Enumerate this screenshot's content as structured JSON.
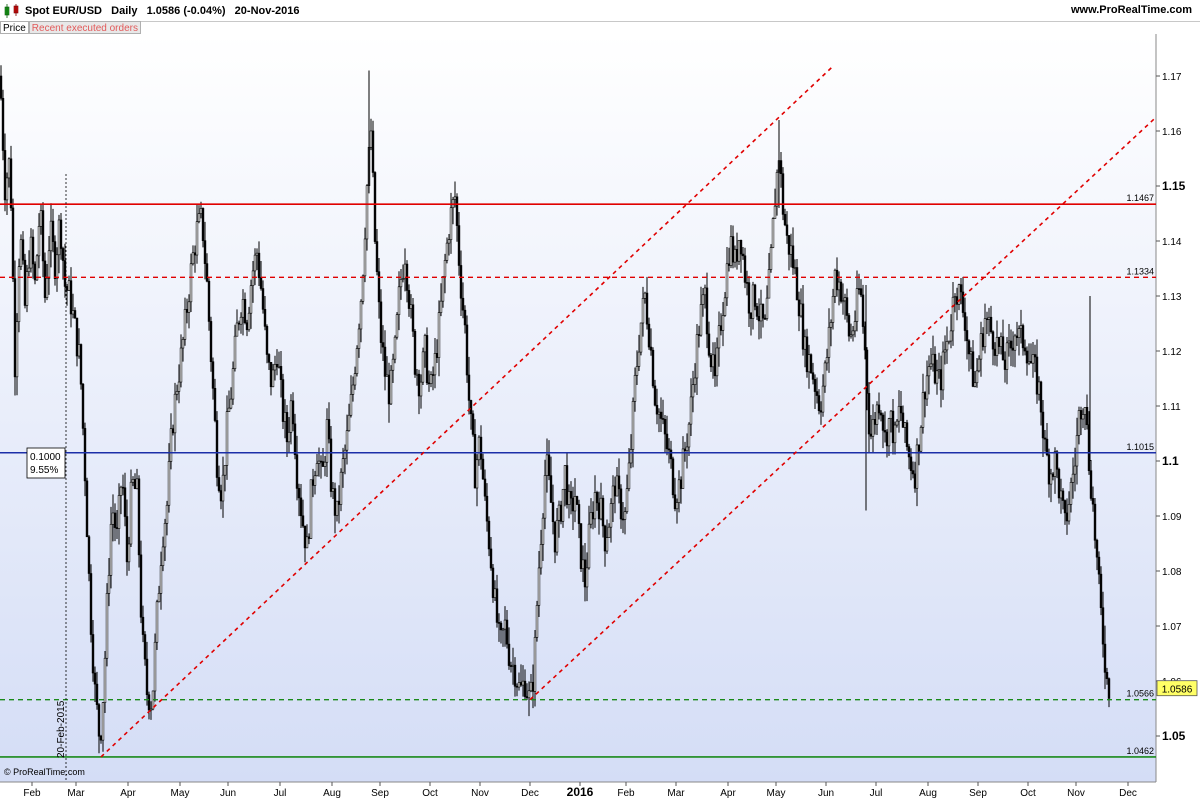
{
  "header": {
    "title": "Spot EUR/USD   Daily   1.0586 (-0.04%)   20-Nov-2016",
    "site": "www.ProRealTime.com",
    "tabs": [
      {
        "label": "Price",
        "active": true
      },
      {
        "label": "Recent executed orders",
        "active": false
      }
    ]
  },
  "footer": {
    "copyright": "© ProRealTime.com"
  },
  "chart_data": {
    "type": "candlestick",
    "symbol": "Spot EUR/USD",
    "timeframe": "Daily",
    "last_price": 1.0586,
    "change_pct": "-0.04%",
    "date": "20-Nov-2016",
    "ylim": [
      1.043,
      1.175
    ],
    "y_ticks": [
      "1.05",
      "1.06",
      "1.07",
      "1.08",
      "1.09",
      "1.1",
      "1.11",
      "1.12",
      "1.13",
      "1.14",
      "1.15",
      "1.16",
      "1.17"
    ],
    "x_ticks": [
      "Feb",
      "Mar",
      "Apr",
      "May",
      "Jun",
      "Jul",
      "Aug",
      "Sep",
      "Oct",
      "Nov",
      "Dec",
      "2016",
      "Feb",
      "Mar",
      "Apr",
      "May",
      "Jun",
      "Jul",
      "Aug",
      "Sep",
      "Oct",
      "Nov",
      "Dec"
    ],
    "horizontal_levels": [
      {
        "value": 1.1467,
        "label": "1.1467",
        "color": "#e00000",
        "style": "solid"
      },
      {
        "value": 1.1334,
        "label": "1.1334",
        "color": "#e00000",
        "style": "dashed"
      },
      {
        "value": 1.1015,
        "label": "1.1015",
        "color": "#1c2fa8",
        "style": "solid"
      },
      {
        "value": 1.0566,
        "label": "1.0566",
        "color": "#1a8a1a",
        "style": "dashed"
      },
      {
        "value": 1.0462,
        "label": "1.0462",
        "color": "#1a8a1a",
        "style": "solid"
      }
    ],
    "trend_lines": [
      {
        "from": [
          "Mar-2015",
          1.0462
        ],
        "to": [
          "May-2016",
          1.171
        ],
        "color": "#e00000",
        "style": "dotted"
      },
      {
        "from": [
          "Dec-2015",
          1.0566
        ],
        "to": [
          "Dec-2016",
          1.163
        ],
        "color": "#e00000",
        "style": "dotted"
      }
    ],
    "annotations": [
      {
        "text": "0.1000",
        "sub": "9.55%"
      },
      {
        "text": "20-Feb-2015"
      }
    ],
    "price_tag": "1.0586",
    "path": [
      [
        0,
        1.17
      ],
      [
        5,
        1.15
      ],
      [
        10,
        1.155
      ],
      [
        15,
        1.118
      ],
      [
        20,
        1.142
      ],
      [
        25,
        1.128
      ],
      [
        30,
        1.14
      ],
      [
        35,
        1.132
      ],
      [
        40,
        1.146
      ],
      [
        45,
        1.13
      ],
      [
        50,
        1.142
      ],
      [
        55,
        1.136
      ],
      [
        60,
        1.144
      ],
      [
        65,
        1.132
      ],
      [
        70,
        1.13
      ],
      [
        75,
        1.124
      ],
      [
        80,
        1.118
      ],
      [
        85,
        1.098
      ],
      [
        90,
        1.074
      ],
      [
        95,
        1.058
      ],
      [
        100,
        1.049
      ],
      [
        104,
        1.06
      ],
      [
        108,
        1.078
      ],
      [
        112,
        1.092
      ],
      [
        117,
        1.086
      ],
      [
        122,
        1.098
      ],
      [
        127,
        1.082
      ],
      [
        132,
        1.096
      ],
      [
        137,
        1.094
      ],
      [
        142,
        1.068
      ],
      [
        147,
        1.058
      ],
      [
        152,
        1.056
      ],
      [
        157,
        1.072
      ],
      [
        162,
        1.086
      ],
      [
        167,
        1.092
      ],
      [
        172,
        1.106
      ],
      [
        177,
        1.114
      ],
      [
        182,
        1.12
      ],
      [
        187,
        1.128
      ],
      [
        192,
        1.136
      ],
      [
        197,
        1.142
      ],
      [
        202,
        1.144
      ],
      [
        207,
        1.132
      ],
      [
        212,
        1.116
      ],
      [
        217,
        1.1
      ],
      [
        222,
        1.094
      ],
      [
        227,
        1.106
      ],
      [
        232,
        1.114
      ],
      [
        237,
        1.124
      ],
      [
        242,
        1.13
      ],
      [
        247,
        1.126
      ],
      [
        252,
        1.134
      ],
      [
        257,
        1.138
      ],
      [
        262,
        1.13
      ],
      [
        267,
        1.118
      ],
      [
        272,
        1.114
      ],
      [
        277,
        1.12
      ],
      [
        282,
        1.11
      ],
      [
        287,
        1.104
      ],
      [
        292,
        1.112
      ],
      [
        297,
        1.098
      ],
      [
        302,
        1.09
      ],
      [
        307,
        1.084
      ],
      [
        312,
        1.096
      ],
      [
        317,
        1.102
      ],
      [
        322,
        1.096
      ],
      [
        327,
        1.106
      ],
      [
        332,
        1.094
      ],
      [
        337,
        1.09
      ],
      [
        342,
        1.098
      ],
      [
        347,
        1.104
      ],
      [
        352,
        1.112
      ],
      [
        357,
        1.122
      ],
      [
        362,
        1.132
      ],
      [
        367,
        1.15
      ],
      [
        371,
        1.16
      ],
      [
        375,
        1.14
      ],
      [
        380,
        1.124
      ],
      [
        385,
        1.116
      ],
      [
        390,
        1.112
      ],
      [
        395,
        1.12
      ],
      [
        400,
        1.132
      ],
      [
        405,
        1.138
      ],
      [
        410,
        1.128
      ],
      [
        415,
        1.118
      ],
      [
        420,
        1.114
      ],
      [
        425,
        1.12
      ],
      [
        430,
        1.112
      ],
      [
        435,
        1.118
      ],
      [
        440,
        1.126
      ],
      [
        445,
        1.136
      ],
      [
        450,
        1.144
      ],
      [
        455,
        1.148
      ],
      [
        460,
        1.134
      ],
      [
        465,
        1.124
      ],
      [
        470,
        1.108
      ],
      [
        475,
        1.098
      ],
      [
        480,
        1.104
      ],
      [
        485,
        1.092
      ],
      [
        490,
        1.084
      ],
      [
        495,
        1.074
      ],
      [
        500,
        1.066
      ],
      [
        505,
        1.07
      ],
      [
        510,
        1.064
      ],
      [
        515,
        1.062
      ],
      [
        520,
        1.058
      ],
      [
        525,
        1.06
      ],
      [
        530,
        1.056
      ],
      [
        534,
        1.062
      ],
      [
        538,
        1.078
      ],
      [
        542,
        1.09
      ],
      [
        546,
        1.1
      ],
      [
        550,
        1.094
      ],
      [
        555,
        1.086
      ],
      [
        560,
        1.09
      ],
      [
        565,
        1.098
      ],
      [
        570,
        1.09
      ],
      [
        575,
        1.094
      ],
      [
        580,
        1.084
      ],
      [
        585,
        1.078
      ],
      [
        590,
        1.088
      ],
      [
        595,
        1.094
      ],
      [
        600,
        1.092
      ],
      [
        605,
        1.086
      ],
      [
        610,
        1.09
      ],
      [
        615,
        1.096
      ],
      [
        620,
        1.092
      ],
      [
        625,
        1.09
      ],
      [
        630,
        1.1
      ],
      [
        635,
        1.114
      ],
      [
        640,
        1.124
      ],
      [
        645,
        1.13
      ],
      [
        650,
        1.122
      ],
      [
        655,
        1.112
      ],
      [
        660,
        1.108
      ],
      [
        665,
        1.104
      ],
      [
        670,
        1.1
      ],
      [
        675,
        1.094
      ],
      [
        680,
        1.096
      ],
      [
        685,
        1.102
      ],
      [
        690,
        1.108
      ],
      [
        695,
        1.118
      ],
      [
        700,
        1.126
      ],
      [
        705,
        1.13
      ],
      [
        710,
        1.12
      ],
      [
        715,
        1.114
      ],
      [
        720,
        1.124
      ],
      [
        725,
        1.132
      ],
      [
        730,
        1.14
      ],
      [
        735,
        1.136
      ],
      [
        740,
        1.142
      ],
      [
        745,
        1.134
      ],
      [
        750,
        1.128
      ],
      [
        755,
        1.13
      ],
      [
        760,
        1.126
      ],
      [
        765,
        1.124
      ],
      [
        770,
        1.134
      ],
      [
        775,
        1.148
      ],
      [
        779,
        1.156
      ],
      [
        783,
        1.146
      ],
      [
        787,
        1.14
      ],
      [
        791,
        1.138
      ],
      [
        795,
        1.134
      ],
      [
        800,
        1.128
      ],
      [
        805,
        1.12
      ],
      [
        810,
        1.118
      ],
      [
        815,
        1.114
      ],
      [
        820,
        1.11
      ],
      [
        825,
        1.116
      ],
      [
        830,
        1.124
      ],
      [
        835,
        1.134
      ],
      [
        840,
        1.132
      ],
      [
        845,
        1.128
      ],
      [
        850,
        1.122
      ],
      [
        855,
        1.126
      ],
      [
        860,
        1.132
      ],
      [
        865,
        1.12
      ],
      [
        870,
        1.104
      ],
      [
        875,
        1.108
      ],
      [
        880,
        1.112
      ],
      [
        885,
        1.104
      ],
      [
        890,
        1.108
      ],
      [
        895,
        1.104
      ],
      [
        900,
        1.11
      ],
      [
        905,
        1.104
      ],
      [
        910,
        1.1
      ],
      [
        915,
        1.098
      ],
      [
        920,
        1.106
      ],
      [
        925,
        1.114
      ],
      [
        930,
        1.118
      ],
      [
        935,
        1.116
      ],
      [
        940,
        1.114
      ],
      [
        945,
        1.12
      ],
      [
        950,
        1.124
      ],
      [
        955,
        1.132
      ],
      [
        960,
        1.13
      ],
      [
        965,
        1.126
      ],
      [
        970,
        1.118
      ],
      [
        975,
        1.114
      ],
      [
        980,
        1.12
      ],
      [
        985,
        1.126
      ],
      [
        990,
        1.124
      ],
      [
        995,
        1.122
      ],
      [
        1000,
        1.12
      ],
      [
        1005,
        1.118
      ],
      [
        1010,
        1.12
      ],
      [
        1015,
        1.124
      ],
      [
        1020,
        1.122
      ],
      [
        1025,
        1.122
      ],
      [
        1030,
        1.118
      ],
      [
        1035,
        1.116
      ],
      [
        1040,
        1.112
      ],
      [
        1045,
        1.102
      ],
      [
        1050,
        1.098
      ],
      [
        1055,
        1.1
      ],
      [
        1060,
        1.094
      ],
      [
        1065,
        1.088
      ],
      [
        1070,
        1.094
      ],
      [
        1075,
        1.1
      ],
      [
        1080,
        1.11
      ],
      [
        1085,
        1.112
      ],
      [
        1088,
        1.102
      ],
      [
        1092,
        1.094
      ],
      [
        1096,
        1.084
      ],
      [
        1100,
        1.074
      ],
      [
        1104,
        1.066
      ],
      [
        1107,
        1.06
      ],
      [
        1110,
        1.0586
      ]
    ]
  }
}
